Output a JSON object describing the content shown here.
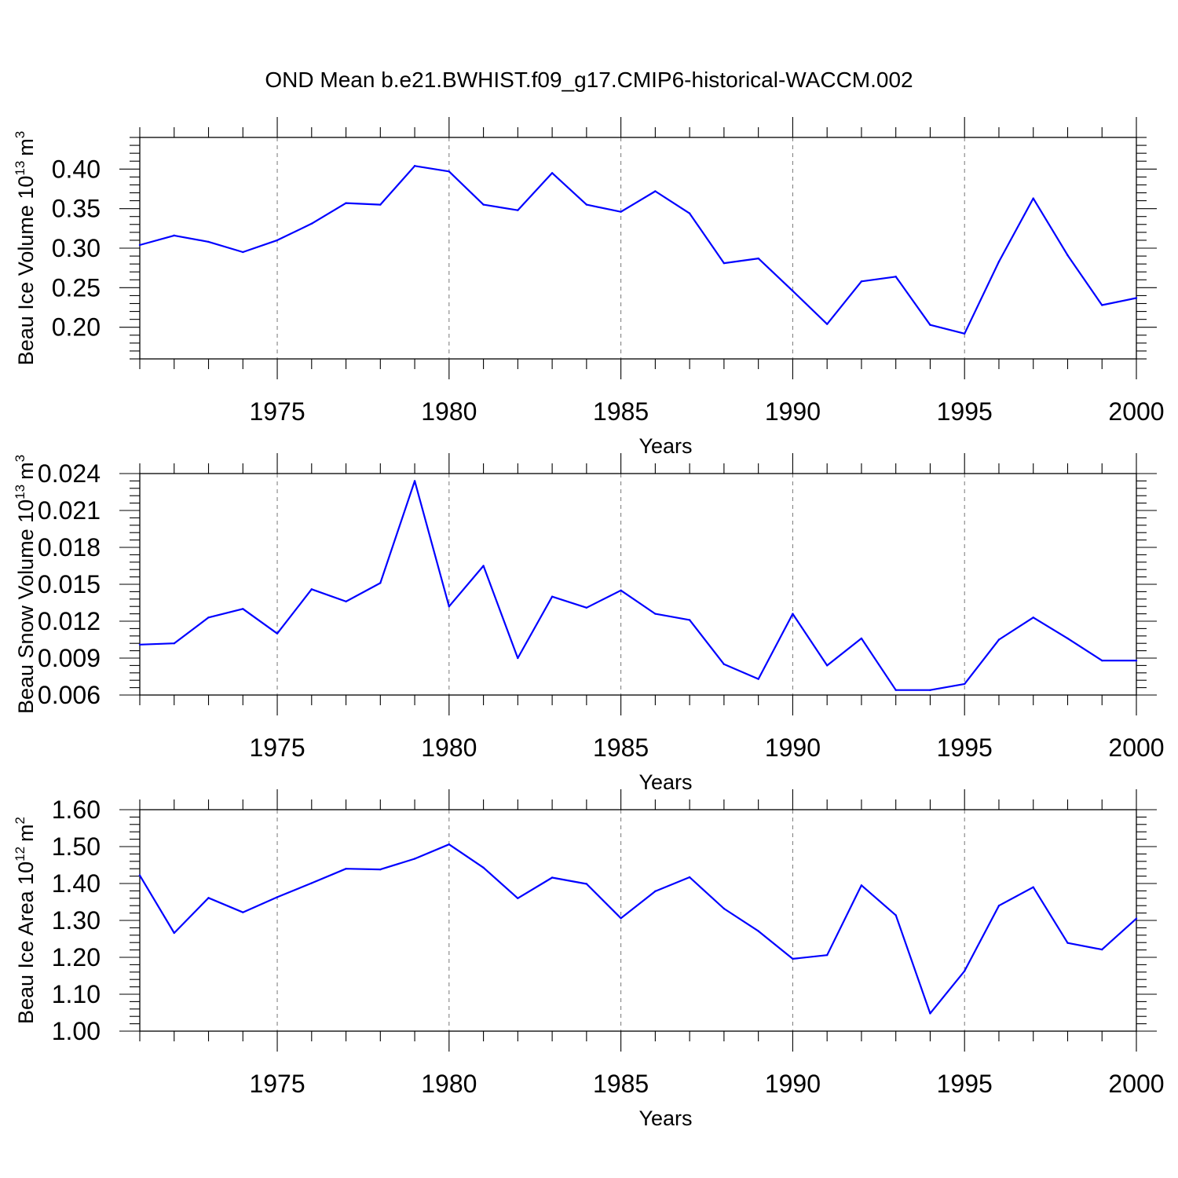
{
  "title": "OND Mean b.e21.BWHIST.f09_g17.CMIP6-historical-WACCM.002",
  "chart_data": [
    {
      "type": "line",
      "xlabel": "Years",
      "ylabel": {
        "text": "Beau Ice Volume 10",
        "exp": "13",
        "unit": "m",
        "unit_exp": "3"
      },
      "xlim": [
        1971,
        2000
      ],
      "ylim": [
        0.16,
        0.44
      ],
      "xticks": [
        1975,
        1980,
        1985,
        1990,
        1995,
        2000
      ],
      "xtick_labels": [
        "1975",
        "1980",
        "1985",
        "1990",
        "1995",
        "2000"
      ],
      "yticks": [
        0.2,
        0.25,
        0.3,
        0.35,
        0.4
      ],
      "ytick_labels": [
        "0.20",
        "0.25",
        "0.30",
        "0.35",
        "0.40"
      ],
      "grid": "vertical dashed at labeled years",
      "line_color": "#0000ff",
      "x": [
        1971,
        1972,
        1973,
        1974,
        1975,
        1976,
        1977,
        1978,
        1979,
        1980,
        1981,
        1982,
        1983,
        1984,
        1985,
        1986,
        1987,
        1988,
        1989,
        1990,
        1991,
        1992,
        1993,
        1994,
        1995,
        1996,
        1997,
        1998,
        1999,
        2000
      ],
      "values": [
        0.304,
        0.316,
        0.308,
        0.295,
        0.31,
        0.331,
        0.357,
        0.355,
        0.404,
        0.397,
        0.355,
        0.348,
        0.395,
        0.355,
        0.346,
        0.372,
        0.344,
        0.281,
        0.287,
        0.246,
        0.204,
        0.258,
        0.264,
        0.203,
        0.192,
        0.283,
        0.363,
        0.291,
        0.228,
        0.237
      ]
    },
    {
      "type": "line",
      "xlabel": "Years",
      "ylabel": {
        "text": "Beau Snow Volume 10",
        "exp": "13",
        "unit": "m",
        "unit_exp": "3"
      },
      "xlim": [
        1971,
        2000
      ],
      "ylim": [
        0.006,
        0.024
      ],
      "xticks": [
        1975,
        1980,
        1985,
        1990,
        1995,
        2000
      ],
      "xtick_labels": [
        "1975",
        "1980",
        "1985",
        "1990",
        "1995",
        "2000"
      ],
      "yticks": [
        0.006,
        0.009,
        0.012,
        0.015,
        0.018,
        0.021,
        0.024
      ],
      "ytick_labels": [
        "0.006",
        "0.009",
        "0.012",
        "0.015",
        "0.018",
        "0.021",
        "0.024"
      ],
      "grid": "vertical dashed at labeled years",
      "line_color": "#0000ff",
      "x": [
        1971,
        1972,
        1973,
        1974,
        1975,
        1976,
        1977,
        1978,
        1979,
        1980,
        1981,
        1982,
        1983,
        1984,
        1985,
        1986,
        1987,
        1988,
        1989,
        1990,
        1991,
        1992,
        1993,
        1994,
        1995,
        1996,
        1997,
        1998,
        1999,
        2000
      ],
      "values": [
        0.0101,
        0.0102,
        0.0123,
        0.013,
        0.011,
        0.0146,
        0.0136,
        0.0151,
        0.0234,
        0.0132,
        0.0165,
        0.009,
        0.014,
        0.0131,
        0.0145,
        0.0126,
        0.0121,
        0.0085,
        0.0073,
        0.0126,
        0.0084,
        0.0106,
        0.0064,
        0.0064,
        0.0069,
        0.0105,
        0.0123,
        0.0106,
        0.0088,
        0.0088
      ]
    },
    {
      "type": "line",
      "xlabel": "Years",
      "ylabel": {
        "text": "Beau Ice Area 10",
        "exp": "12",
        "unit": "m",
        "unit_exp": "2"
      },
      "xlim": [
        1971,
        2000
      ],
      "ylim": [
        1.0,
        1.6
      ],
      "xticks": [
        1975,
        1980,
        1985,
        1990,
        1995,
        2000
      ],
      "xtick_labels": [
        "1975",
        "1980",
        "1985",
        "1990",
        "1995",
        "2000"
      ],
      "yticks": [
        1.0,
        1.1,
        1.2,
        1.3,
        1.4,
        1.5,
        1.6
      ],
      "ytick_labels": [
        "1.00",
        "1.10",
        "1.20",
        "1.30",
        "1.40",
        "1.50",
        "1.60"
      ],
      "grid": "vertical dashed at labeled years",
      "line_color": "#0000ff",
      "x": [
        1971,
        1972,
        1973,
        1974,
        1975,
        1976,
        1977,
        1978,
        1979,
        1980,
        1981,
        1982,
        1983,
        1984,
        1985,
        1986,
        1987,
        1988,
        1989,
        1990,
        1991,
        1992,
        1993,
        1994,
        1995,
        1996,
        1997,
        1998,
        1999,
        2000
      ],
      "values": [
        1.422,
        1.266,
        1.361,
        1.322,
        1.363,
        1.401,
        1.44,
        1.438,
        1.467,
        1.506,
        1.443,
        1.36,
        1.416,
        1.399,
        1.306,
        1.379,
        1.417,
        1.332,
        1.271,
        1.196,
        1.206,
        1.395,
        1.314,
        1.048,
        1.163,
        1.34,
        1.39,
        1.239,
        1.221,
        1.305
      ]
    }
  ]
}
